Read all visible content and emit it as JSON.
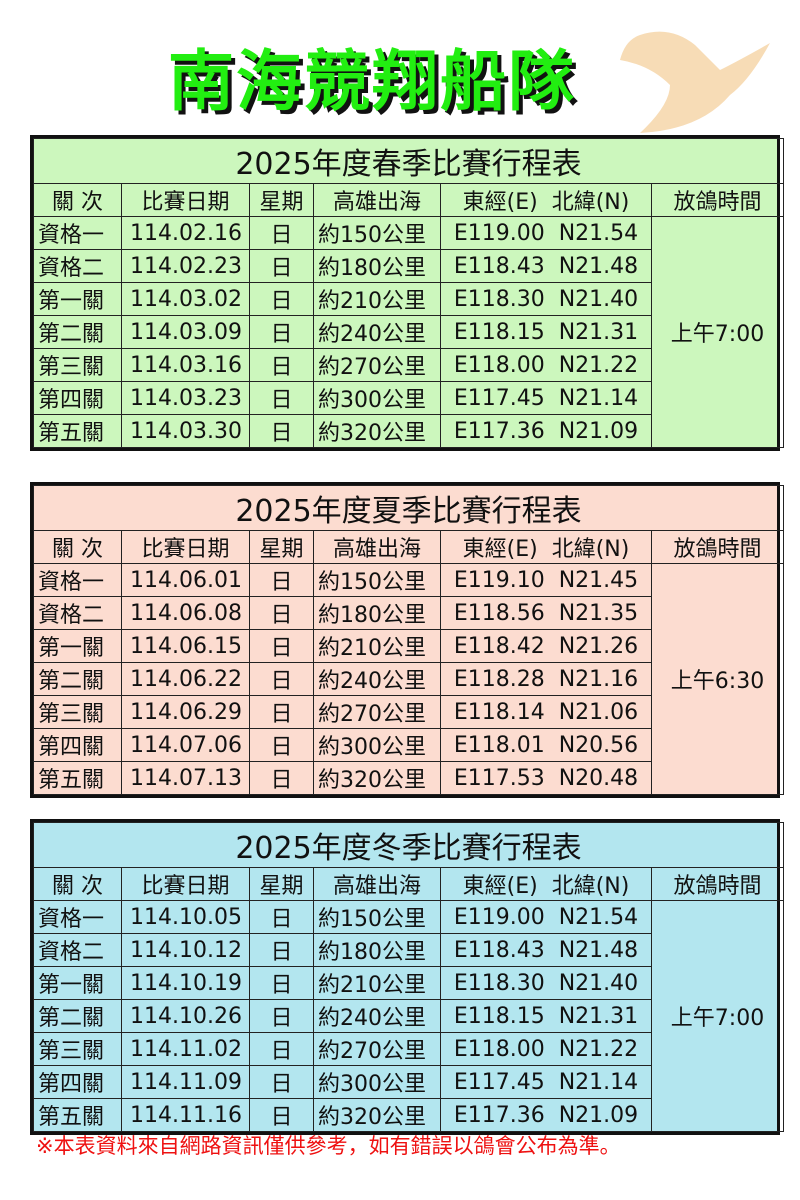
{
  "header": {
    "title": "南海競翔船隊"
  },
  "columns": [
    "關 次",
    "比賽日期",
    "星期",
    "高雄出海",
    "東經(E)  北緯(N)",
    "放鴿時間"
  ],
  "tables": [
    {
      "title": "2025年度春季比賽行程表",
      "color": "#ccf7bd",
      "release_time": "上午7:00",
      "rows": [
        [
          "資格一",
          "114.02.16",
          "日",
          "約150公里",
          "E119.00  N21.54"
        ],
        [
          "資格二",
          "114.02.23",
          "日",
          "約180公里",
          "E118.43  N21.48"
        ],
        [
          "第一關",
          "114.03.02",
          "日",
          "約210公里",
          "E118.30  N21.40"
        ],
        [
          "第二關",
          "114.03.09",
          "日",
          "約240公里",
          "E118.15  N21.31"
        ],
        [
          "第三關",
          "114.03.16",
          "日",
          "約270公里",
          "E118.00  N21.22"
        ],
        [
          "第四關",
          "114.03.23",
          "日",
          "約300公里",
          "E117.45  N21.14"
        ],
        [
          "第五關",
          "114.03.30",
          "日",
          "約320公里",
          "E117.36  N21.09"
        ]
      ]
    },
    {
      "title": "2025年度夏季比賽行程表",
      "color": "#fcdcd0",
      "release_time": "上午6:30",
      "rows": [
        [
          "資格一",
          "114.06.01",
          "日",
          "約150公里",
          "E119.10  N21.45"
        ],
        [
          "資格二",
          "114.06.08",
          "日",
          "約180公里",
          "E118.56  N21.35"
        ],
        [
          "第一關",
          "114.06.15",
          "日",
          "約210公里",
          "E118.42  N21.26"
        ],
        [
          "第二關",
          "114.06.22",
          "日",
          "約240公里",
          "E118.28  N21.16"
        ],
        [
          "第三關",
          "114.06.29",
          "日",
          "約270公里",
          "E118.14  N21.06"
        ],
        [
          "第四關",
          "114.07.06",
          "日",
          "約300公里",
          "E118.01  N20.56"
        ],
        [
          "第五關",
          "114.07.13",
          "日",
          "約320公里",
          "E117.53  N20.48"
        ]
      ]
    },
    {
      "title": "2025年度冬季比賽行程表",
      "color": "#b3e6ef",
      "release_time": "上午7:00",
      "rows": [
        [
          "資格一",
          "114.10.05",
          "日",
          "約150公里",
          "E119.00  N21.54"
        ],
        [
          "資格二",
          "114.10.12",
          "日",
          "約180公里",
          "E118.43  N21.48"
        ],
        [
          "第一關",
          "114.10.19",
          "日",
          "約210公里",
          "E118.30  N21.40"
        ],
        [
          "第二關",
          "114.10.26",
          "日",
          "約240公里",
          "E118.15  N21.31"
        ],
        [
          "第三關",
          "114.11.02",
          "日",
          "約270公里",
          "E118.00  N21.22"
        ],
        [
          "第四關",
          "114.11.09",
          "日",
          "約300公里",
          "E117.45  N21.14"
        ],
        [
          "第五關",
          "114.11.16",
          "日",
          "約320公里",
          "E117.36  N21.09"
        ]
      ]
    }
  ],
  "footer": {
    "note": "※本表資料來自網路資訊僅供參考，如有錯誤以鴿會公布為準。"
  }
}
